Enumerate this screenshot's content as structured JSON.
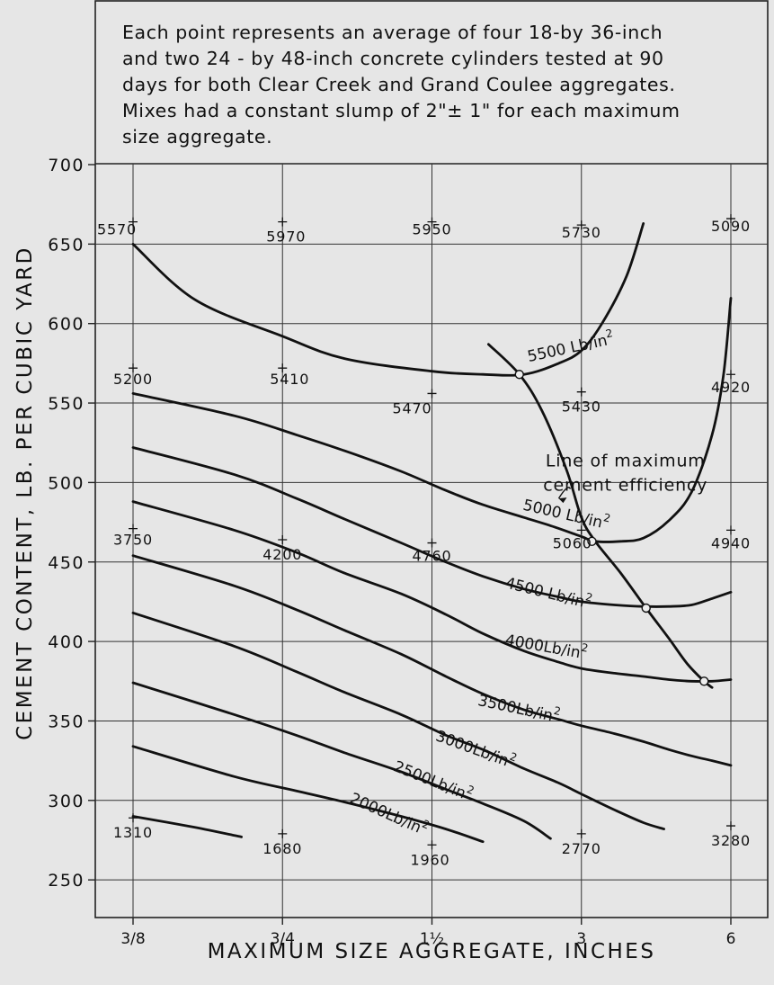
{
  "note_lines": [
    "Each point represents an average of four 18-by 36-inch",
    "and two 24 - by 48-inch concrete cylinders tested at 90",
    "days for both Clear Creek and Grand Coulee aggregates.",
    "Mixes had a constant slump of 2\"± 1\" for each maximum",
    "size aggregate."
  ],
  "chart_data": {
    "type": "line",
    "xlabel": "MAXIMUM SIZE AGGREGATE, INCHES",
    "ylabel": "CEMENT CONTENT, LB. PER CUBIC YARD",
    "x_ticks": [
      {
        "value": 0.375,
        "label": "3/8"
      },
      {
        "value": 0.75,
        "label": "3/4"
      },
      {
        "value": 1.5,
        "label": "1½"
      },
      {
        "value": 3,
        "label": "3"
      },
      {
        "value": 6,
        "label": "6"
      }
    ],
    "y_ticks": [
      250,
      300,
      350,
      400,
      450,
      500,
      550,
      600,
      650,
      700
    ],
    "ylim": [
      230,
      700
    ],
    "grid": true,
    "series": [
      {
        "name": "5500 Lb/in²",
        "label": {
          "text": "5500 Lb/in",
          "sup": "2",
          "x": 2.35,
          "y": 576,
          "rot": -12
        },
        "points": [
          [
            0.375,
            650
          ],
          [
            0.5,
            615
          ],
          [
            0.75,
            592
          ],
          [
            1.0,
            578
          ],
          [
            1.5,
            570
          ],
          [
            1.9,
            568
          ],
          [
            2.3,
            568
          ],
          [
            2.7,
            575
          ],
          [
            3.0,
            583
          ],
          [
            3.3,
            600
          ],
          [
            3.7,
            630
          ],
          [
            4.0,
            663
          ]
        ]
      },
      {
        "name": "5000 Lb/in²",
        "label": {
          "text": "5000 Lb/in",
          "sup": "2",
          "x": 2.28,
          "y": 483,
          "rot": 13
        },
        "points": [
          [
            0.375,
            556
          ],
          [
            0.6,
            542
          ],
          [
            0.8,
            530
          ],
          [
            1.0,
            520
          ],
          [
            1.3,
            507
          ],
          [
            1.6,
            495
          ],
          [
            1.9,
            486
          ],
          [
            2.3,
            478
          ],
          [
            2.65,
            472
          ],
          [
            3.0,
            466
          ],
          [
            3.2,
            463
          ],
          [
            3.6,
            463
          ],
          [
            4.0,
            465
          ],
          [
            4.5,
            476
          ],
          [
            5.0,
            494
          ],
          [
            5.5,
            530
          ],
          [
            5.8,
            568
          ],
          [
            6.0,
            616
          ]
        ]
      },
      {
        "name": "4500 Lb/in²",
        "label": {
          "text": "4500 Lb/in",
          "sup": "2",
          "x": 2.1,
          "y": 434,
          "rot": 14
        },
        "points": [
          [
            0.375,
            522
          ],
          [
            0.6,
            505
          ],
          [
            0.8,
            490
          ],
          [
            1.0,
            477
          ],
          [
            1.3,
            462
          ],
          [
            1.6,
            450
          ],
          [
            1.9,
            441
          ],
          [
            2.3,
            433
          ],
          [
            2.7,
            428
          ],
          [
            3.0,
            425
          ],
          [
            3.5,
            423
          ],
          [
            4.0,
            422
          ],
          [
            4.5,
            422
          ],
          [
            5.0,
            423
          ],
          [
            5.5,
            427
          ],
          [
            6.0,
            431
          ]
        ]
      },
      {
        "name": "4000 Lb/in²",
        "label": {
          "text": "4000Lb/in",
          "sup": "2",
          "x": 2.1,
          "y": 398,
          "rot": 10
        },
        "points": [
          [
            0.375,
            488
          ],
          [
            0.6,
            470
          ],
          [
            0.8,
            456
          ],
          [
            1.0,
            443
          ],
          [
            1.3,
            430
          ],
          [
            1.6,
            417
          ],
          [
            1.9,
            405
          ],
          [
            2.3,
            394
          ],
          [
            2.7,
            387
          ],
          [
            3.0,
            383
          ],
          [
            3.5,
            380
          ],
          [
            4.0,
            378
          ],
          [
            4.5,
            376
          ],
          [
            5.0,
            375
          ],
          [
            5.5,
            375
          ],
          [
            6.0,
            376
          ]
        ]
      },
      {
        "name": "3500 Lb/in²",
        "label": {
          "text": "3500Lb/in",
          "sup": "2",
          "x": 1.85,
          "y": 360,
          "rot": 12
        },
        "points": [
          [
            0.375,
            454
          ],
          [
            0.6,
            435
          ],
          [
            0.8,
            420
          ],
          [
            1.0,
            407
          ],
          [
            1.3,
            392
          ],
          [
            1.6,
            378
          ],
          [
            1.9,
            367
          ],
          [
            2.3,
            357
          ],
          [
            2.7,
            351
          ],
          [
            3.0,
            347
          ],
          [
            3.5,
            342
          ],
          [
            4.0,
            337
          ],
          [
            4.5,
            332
          ],
          [
            5.0,
            328
          ],
          [
            5.5,
            325
          ],
          [
            6.0,
            322
          ]
        ]
      },
      {
        "name": "3000 Lb/in²",
        "label": {
          "text": "3000Lb/in",
          "sup": "2",
          "x": 1.52,
          "y": 338,
          "rot": 20
        },
        "points": [
          [
            0.375,
            418
          ],
          [
            0.6,
            397
          ],
          [
            0.8,
            381
          ],
          [
            1.0,
            368
          ],
          [
            1.3,
            354
          ],
          [
            1.6,
            341
          ],
          [
            1.9,
            332
          ],
          [
            2.3,
            320
          ],
          [
            2.7,
            311
          ],
          [
            3.0,
            304
          ],
          [
            3.5,
            294
          ],
          [
            4.0,
            286
          ],
          [
            4.4,
            282
          ]
        ]
      },
      {
        "name": "2500 Lb/in²",
        "label": {
          "text": "2500Lb/in",
          "sup": "2",
          "x": 1.25,
          "y": 319,
          "rot": 22
        },
        "points": [
          [
            0.375,
            374
          ],
          [
            0.6,
            354
          ],
          [
            0.8,
            341
          ],
          [
            1.0,
            330
          ],
          [
            1.3,
            318
          ],
          [
            1.6,
            307
          ],
          [
            1.9,
            298
          ],
          [
            2.3,
            287
          ],
          [
            2.6,
            276
          ]
        ]
      },
      {
        "name": "2000 Lb/in²",
        "label": {
          "text": "2000Lb/in",
          "sup": "2",
          "x": 1.02,
          "y": 299,
          "rot": 24
        },
        "points": [
          [
            0.375,
            334
          ],
          [
            0.6,
            315
          ],
          [
            0.8,
            306
          ],
          [
            1.0,
            299
          ],
          [
            1.3,
            290
          ],
          [
            1.6,
            282
          ],
          [
            1.9,
            274
          ]
        ]
      },
      {
        "name": "",
        "points": [
          [
            0.375,
            290
          ],
          [
            0.5,
            283
          ],
          [
            0.62,
            277
          ]
        ]
      },
      {
        "name": "Line of maximum cement efficiency",
        "points": [
          [
            1.95,
            587
          ],
          [
            2.25,
            568
          ],
          [
            2.5,
            545
          ],
          [
            2.8,
            508
          ],
          [
            3.0,
            478
          ],
          [
            3.2,
            463
          ],
          [
            3.6,
            443
          ],
          [
            4.05,
            421
          ],
          [
            4.5,
            402
          ],
          [
            4.9,
            386
          ],
          [
            5.3,
            375
          ],
          [
            5.5,
            371
          ]
        ]
      }
    ],
    "efficiency_points": [
      [
        2.25,
        568
      ],
      [
        3.15,
        463
      ],
      [
        4.05,
        421
      ],
      [
        5.3,
        375
      ]
    ],
    "annotation": {
      "lines": [
        "Line of maximum",
        "cement efficiency"
      ],
      "x": 3.68,
      "y": 510,
      "arrow_from": [
        2.85,
        496
      ],
      "arrow_to": [
        2.7,
        490
      ]
    },
    "test_points": [
      {
        "x": 0.375,
        "y": 664,
        "label": "5570",
        "lx": -18,
        "ly": 14
      },
      {
        "x": 0.75,
        "y": 664,
        "label": "5970",
        "lx": 4,
        "ly": 22
      },
      {
        "x": 1.5,
        "y": 664,
        "label": "5950",
        "lx": 0,
        "ly": 14
      },
      {
        "x": 3,
        "y": 662,
        "label": "5730",
        "lx": 0,
        "ly": 14
      },
      {
        "x": 6,
        "y": 666,
        "label": "5090",
        "lx": 0,
        "ly": 14
      },
      {
        "x": 0.375,
        "y": 572,
        "label": "5200",
        "lx": 0,
        "ly": 18
      },
      {
        "x": 0.75,
        "y": 572,
        "label": "5410",
        "lx": 8,
        "ly": 18
      },
      {
        "x": 1.5,
        "y": 556,
        "label": "5470",
        "lx": -22,
        "ly": 22
      },
      {
        "x": 3,
        "y": 557,
        "label": "5430",
        "lx": 0,
        "ly": 22
      },
      {
        "x": 6,
        "y": 568,
        "label": "4920",
        "lx": 0,
        "ly": 20
      },
      {
        "x": 0.375,
        "y": 471,
        "label": "3750",
        "lx": 0,
        "ly": 18
      },
      {
        "x": 0.75,
        "y": 464,
        "label": "4200",
        "lx": 0,
        "ly": 22
      },
      {
        "x": 1.5,
        "y": 462,
        "label": "4760",
        "lx": 0,
        "ly": 20
      },
      {
        "x": 3,
        "y": 470,
        "label": "5060",
        "lx": -10,
        "ly": 20
      },
      {
        "x": 6,
        "y": 470,
        "label": "4940",
        "lx": 0,
        "ly": 20
      },
      {
        "x": 0.375,
        "y": 289,
        "label": "1310",
        "lx": 0,
        "ly": 22
      },
      {
        "x": 0.75,
        "y": 279,
        "label": "1680",
        "lx": 0,
        "ly": 22
      },
      {
        "x": 1.5,
        "y": 272,
        "label": "1960",
        "lx": -2,
        "ly": 22
      },
      {
        "x": 3,
        "y": 279,
        "label": "2770",
        "lx": 0,
        "ly": 22
      },
      {
        "x": 6,
        "y": 284,
        "label": "3280",
        "lx": 0,
        "ly": 22
      }
    ]
  }
}
